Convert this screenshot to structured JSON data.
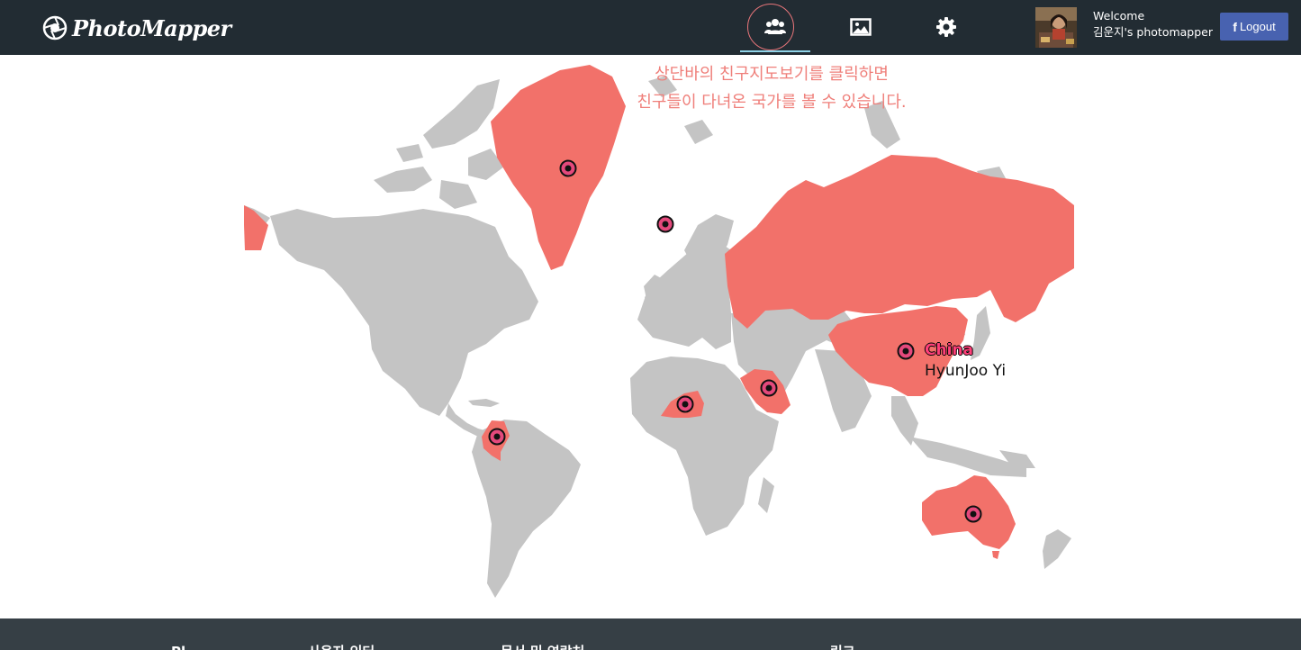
{
  "app": {
    "brand": "PhotoMapper"
  },
  "nav": {
    "friends_icon": "users-icon",
    "photos_icon": "image-icon",
    "settings_icon": "gear-icon",
    "active": "friends"
  },
  "user": {
    "welcome": "Welcome",
    "page_name": "김운지's photomapper",
    "logout_label": "Logout",
    "logout_icon": "facebook-f-icon"
  },
  "map": {
    "hint_line1": "상단바의 친구지도보기를 클릭하면",
    "hint_line2": "친구들이 다녀온 국가를 볼 수 있습니다.",
    "highlight_color": "#f2716a",
    "land_color": "#c4c4c4",
    "marker_color": "#c2185b",
    "highlighted_countries": [
      "Greenland",
      "Iceland",
      "Russia",
      "China",
      "Saudi Arabia",
      "Niger",
      "Colombia",
      "Australia"
    ],
    "tooltip": {
      "country": "China",
      "person": "HyunJoo Yi"
    }
  },
  "footer": {
    "headings": [
      "Pl",
      "사용자 인터",
      "문서 및 연락처",
      "링크"
    ]
  }
}
